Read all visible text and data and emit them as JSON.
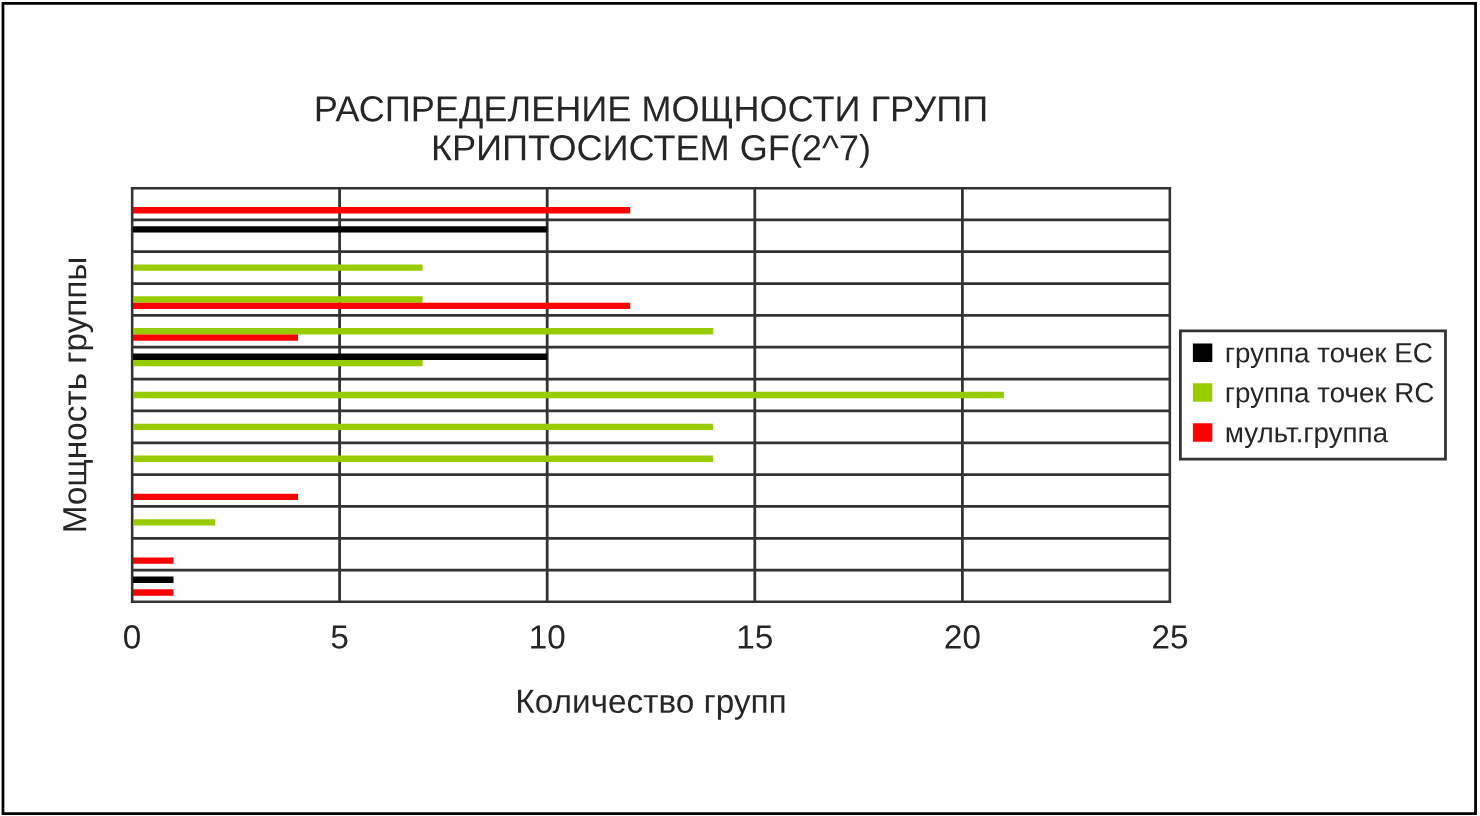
{
  "chart_data": {
    "type": "bar",
    "orientation": "horizontal",
    "title": "РАСПРЕДЕЛЕНИЕ МОЩНОСТИ ГРУПП\nКРИПТОСИСТЕМ GF(2^7)",
    "xlabel": "Количество групп",
    "ylabel": "Мощность группы",
    "categories": [
      null,
      null,
      null,
      null,
      null,
      null,
      null,
      null,
      null,
      null,
      null,
      null,
      null
    ],
    "series": [
      {
        "name": "группа точек EC",
        "color": "#000000",
        "values": [
          null,
          10,
          null,
          null,
          null,
          10,
          null,
          null,
          null,
          null,
          null,
          null,
          1
        ]
      },
      {
        "name": "группа точек RC",
        "color": "#99cc00",
        "values": [
          null,
          null,
          7,
          7,
          14,
          7,
          21,
          14,
          14,
          null,
          2,
          null,
          null
        ]
      },
      {
        "name": "мульт.группа",
        "color": "#ff0000",
        "values": [
          12,
          null,
          null,
          12,
          4,
          null,
          null,
          null,
          null,
          4,
          null,
          1,
          1
        ]
      }
    ],
    "xlim": [
      0,
      25
    ],
    "xticks": [
      0,
      5,
      10,
      15,
      20,
      25
    ],
    "grid": true,
    "legend": "right",
    "tick_labels": "x"
  }
}
